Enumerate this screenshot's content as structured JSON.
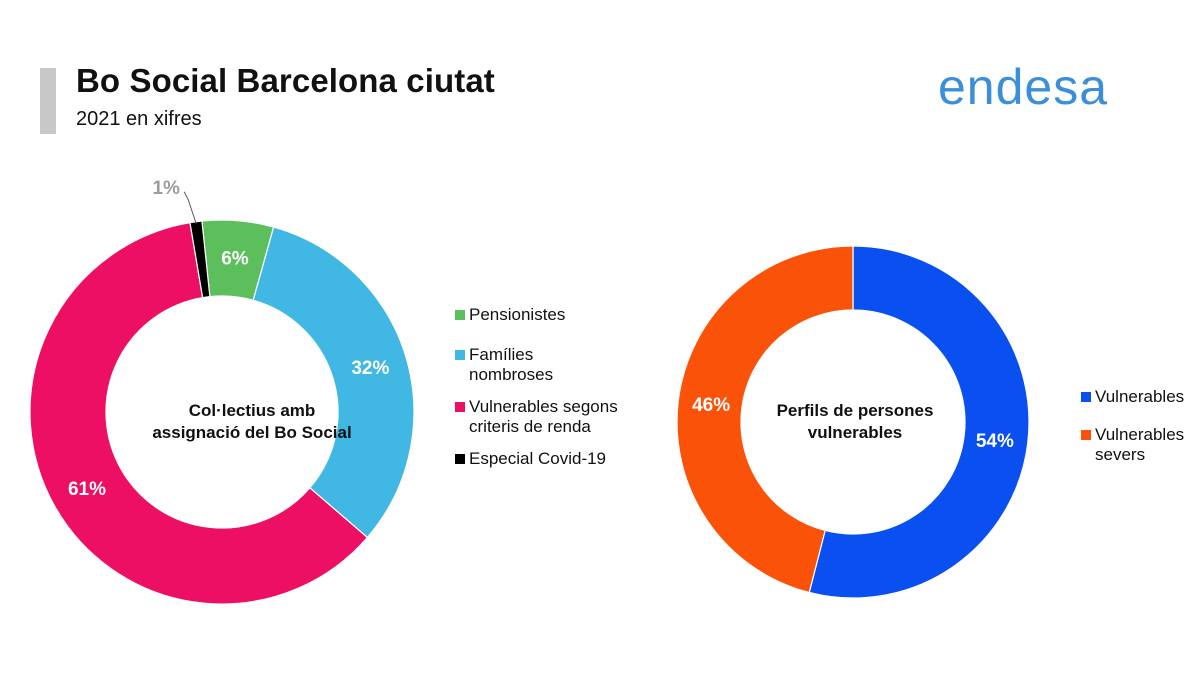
{
  "header": {
    "title": "Bo Social Barcelona ciutat",
    "subtitle": "2021 en xifres",
    "logo_text": "endesa"
  },
  "chart_data": [
    {
      "type": "pie",
      "variant": "donut",
      "center_label": "Col·lectius amb assignació del Bo Social",
      "categories": [
        "Pensionistes",
        "Famílies nombroses",
        "Vulnerables segons criteris de renda",
        "Especial Covid-19"
      ],
      "values": [
        6,
        32,
        61,
        1
      ],
      "data_labels": [
        "6%",
        "32%",
        "61%",
        "1%"
      ],
      "colors": [
        "#5cbf5c",
        "#41b8e4",
        "#ec0f64",
        "#000000"
      ],
      "label_colors": [
        "#ffffff",
        "#ffffff",
        "#ffffff",
        "#9c9c9c"
      ],
      "legend_position": "right"
    },
    {
      "type": "pie",
      "variant": "donut",
      "center_label": "Perfils de persones vulnerables",
      "categories": [
        "Vulnerables",
        "Vulnerables severs"
      ],
      "values": [
        54,
        46
      ],
      "data_labels": [
        "54%",
        "46%"
      ],
      "colors": [
        "#0a4fef",
        "#fa5209"
      ],
      "label_colors": [
        "#ffffff",
        "#ffffff"
      ],
      "legend_position": "right"
    }
  ]
}
